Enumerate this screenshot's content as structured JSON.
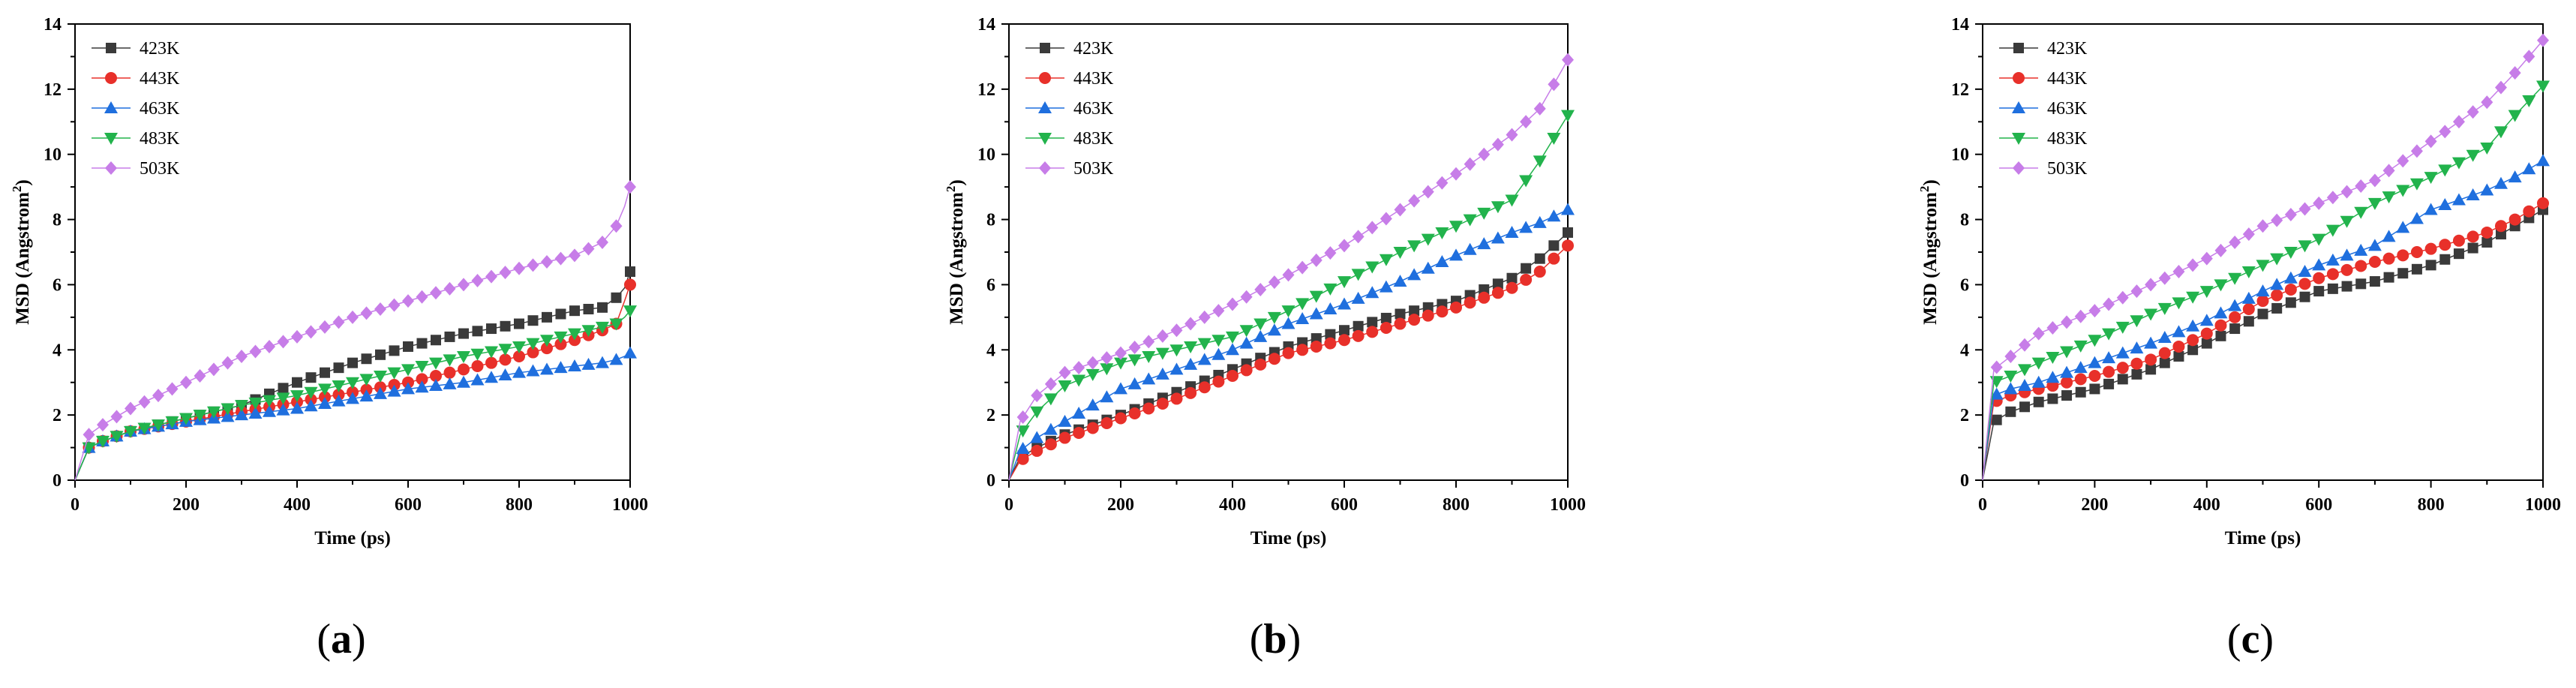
{
  "chart_data": [
    {
      "type": "line",
      "panel_label": "(a)",
      "xlabel": "Time (ps)",
      "ylabel": "MSD (Angstrom",
      "ylabel_sup": "2",
      "ylabel_close": ")",
      "xlim": [
        0,
        1000
      ],
      "ylim": [
        0,
        14
      ],
      "xticks": [
        0,
        200,
        400,
        600,
        800,
        1000
      ],
      "yticks": [
        0,
        2,
        4,
        6,
        8,
        10,
        12,
        14
      ],
      "legend_position": "top-left",
      "series": [
        {
          "name": "423K",
          "color": "#3a3a3a",
          "marker": "square",
          "x": [
            0,
            25,
            50,
            100,
            200,
            300,
            400,
            500,
            600,
            700,
            800,
            900,
            950,
            975,
            990,
            1000
          ],
          "y": [
            0,
            1.0,
            1.2,
            1.5,
            1.9,
            2.3,
            3.0,
            3.6,
            4.1,
            4.5,
            4.8,
            5.2,
            5.3,
            5.6,
            5.9,
            6.4
          ]
        },
        {
          "name": "443K",
          "color": "#e8302a",
          "marker": "circle",
          "x": [
            0,
            25,
            50,
            100,
            200,
            300,
            400,
            500,
            600,
            700,
            800,
            900,
            950,
            975,
            990,
            1000
          ],
          "y": [
            0,
            1.0,
            1.2,
            1.5,
            1.8,
            2.1,
            2.4,
            2.7,
            3.0,
            3.4,
            3.8,
            4.3,
            4.6,
            4.8,
            5.5,
            6.0
          ]
        },
        {
          "name": "463K",
          "color": "#1f6fde",
          "marker": "triangle-up",
          "x": [
            0,
            25,
            50,
            100,
            200,
            300,
            400,
            500,
            600,
            700,
            800,
            900,
            950,
            975,
            990,
            1000
          ],
          "y": [
            0,
            1.0,
            1.2,
            1.5,
            1.8,
            2.0,
            2.2,
            2.5,
            2.8,
            3.0,
            3.3,
            3.5,
            3.6,
            3.7,
            3.8,
            3.9
          ]
        },
        {
          "name": "483K",
          "color": "#22b34c",
          "marker": "triangle-down",
          "x": [
            0,
            25,
            50,
            100,
            200,
            300,
            400,
            500,
            600,
            700,
            800,
            900,
            950,
            975,
            990,
            1000
          ],
          "y": [
            0,
            1.0,
            1.2,
            1.5,
            1.9,
            2.3,
            2.6,
            3.0,
            3.4,
            3.8,
            4.1,
            4.5,
            4.7,
            4.8,
            5.0,
            5.2
          ]
        },
        {
          "name": "503K",
          "color": "#c77de8",
          "marker": "diamond",
          "x": [
            0,
            25,
            50,
            100,
            200,
            300,
            400,
            500,
            600,
            700,
            800,
            900,
            950,
            975,
            990,
            1000
          ],
          "y": [
            0,
            1.4,
            1.7,
            2.2,
            3.0,
            3.8,
            4.4,
            5.0,
            5.5,
            6.0,
            6.5,
            6.9,
            7.3,
            7.8,
            8.4,
            9.0
          ]
        }
      ]
    },
    {
      "type": "line",
      "panel_label": "(b)",
      "xlabel": "Time (ps)",
      "ylabel": "MSD (Angstrom",
      "ylabel_sup": "2",
      "ylabel_close": ")",
      "xlim": [
        0,
        1000
      ],
      "ylim": [
        0,
        14
      ],
      "xticks": [
        0,
        200,
        400,
        600,
        800,
        1000
      ],
      "yticks": [
        0,
        2,
        4,
        6,
        8,
        10,
        12,
        14
      ],
      "legend_position": "top-left",
      "series": [
        {
          "name": "423K",
          "color": "#3a3a3a",
          "marker": "square",
          "x": [
            0,
            20,
            50,
            100,
            200,
            300,
            400,
            500,
            600,
            700,
            800,
            900,
            950,
            1000
          ],
          "y": [
            0,
            0.7,
            1.0,
            1.4,
            2.0,
            2.7,
            3.4,
            4.1,
            4.6,
            5.1,
            5.5,
            6.2,
            6.8,
            7.6
          ]
        },
        {
          "name": "443K",
          "color": "#e8302a",
          "marker": "circle",
          "x": [
            0,
            20,
            50,
            100,
            200,
            300,
            400,
            500,
            600,
            700,
            800,
            900,
            950,
            1000
          ],
          "y": [
            0,
            0.6,
            0.9,
            1.3,
            1.9,
            2.5,
            3.2,
            3.9,
            4.3,
            4.8,
            5.3,
            5.9,
            6.4,
            7.2
          ]
        },
        {
          "name": "463K",
          "color": "#1f6fde",
          "marker": "triangle-up",
          "x": [
            0,
            20,
            50,
            100,
            200,
            300,
            400,
            500,
            600,
            700,
            800,
            900,
            950,
            1000
          ],
          "y": [
            0,
            0.9,
            1.3,
            1.8,
            2.8,
            3.4,
            4.0,
            4.8,
            5.4,
            6.1,
            6.9,
            7.6,
            7.9,
            8.3
          ]
        },
        {
          "name": "483K",
          "color": "#22b34c",
          "marker": "triangle-down",
          "x": [
            0,
            20,
            50,
            100,
            200,
            300,
            400,
            500,
            600,
            700,
            800,
            900,
            950,
            1000
          ],
          "y": [
            0,
            1.4,
            2.1,
            2.9,
            3.6,
            4.0,
            4.4,
            5.2,
            6.1,
            7.0,
            7.8,
            8.6,
            9.8,
            11.2
          ]
        },
        {
          "name": "503K",
          "color": "#c77de8",
          "marker": "diamond",
          "x": [
            0,
            20,
            50,
            100,
            200,
            300,
            400,
            500,
            600,
            700,
            800,
            900,
            950,
            1000
          ],
          "y": [
            0,
            1.8,
            2.6,
            3.3,
            3.9,
            4.6,
            5.4,
            6.3,
            7.2,
            8.3,
            9.4,
            10.6,
            11.4,
            12.9
          ]
        }
      ]
    },
    {
      "type": "line",
      "panel_label": "(c)",
      "xlabel": "Time (ps)",
      "ylabel": "MSD (Angstrom",
      "ylabel_sup": "2",
      "ylabel_close": ")",
      "xlim": [
        0,
        1000
      ],
      "ylim": [
        0,
        14
      ],
      "xticks": [
        0,
        200,
        400,
        600,
        800,
        1000
      ],
      "yticks": [
        0,
        2,
        4,
        6,
        8,
        10,
        12,
        14
      ],
      "legend_position": "top-left",
      "series": [
        {
          "name": "423K",
          "color": "#3a3a3a",
          "marker": "square",
          "x": [
            0,
            20,
            50,
            100,
            200,
            300,
            400,
            500,
            600,
            700,
            800,
            900,
            950,
            1000
          ],
          "y": [
            0,
            1.8,
            2.1,
            2.4,
            2.8,
            3.4,
            4.2,
            5.1,
            5.8,
            6.1,
            6.6,
            7.3,
            7.8,
            8.3
          ]
        },
        {
          "name": "443K",
          "color": "#e8302a",
          "marker": "circle",
          "x": [
            0,
            20,
            50,
            100,
            200,
            300,
            400,
            500,
            600,
            700,
            800,
            900,
            950,
            1000
          ],
          "y": [
            0,
            2.4,
            2.6,
            2.8,
            3.2,
            3.7,
            4.5,
            5.5,
            6.2,
            6.7,
            7.1,
            7.6,
            8.0,
            8.5
          ]
        },
        {
          "name": "463K",
          "color": "#1f6fde",
          "marker": "triangle-up",
          "x": [
            0,
            20,
            50,
            100,
            200,
            300,
            400,
            500,
            600,
            700,
            800,
            900,
            950,
            1000
          ],
          "y": [
            0,
            2.6,
            2.8,
            3.0,
            3.6,
            4.2,
            4.9,
            5.8,
            6.6,
            7.2,
            8.3,
            8.9,
            9.3,
            9.8
          ]
        },
        {
          "name": "483K",
          "color": "#22b34c",
          "marker": "triangle-down",
          "x": [
            0,
            20,
            50,
            100,
            200,
            300,
            400,
            500,
            600,
            700,
            800,
            900,
            950,
            1000
          ],
          "y": [
            0,
            3.0,
            3.2,
            3.6,
            4.3,
            5.1,
            5.8,
            6.6,
            7.4,
            8.5,
            9.3,
            10.2,
            11.2,
            12.1
          ]
        },
        {
          "name": "503K",
          "color": "#c77de8",
          "marker": "diamond",
          "x": [
            0,
            20,
            50,
            100,
            200,
            300,
            400,
            500,
            600,
            700,
            800,
            900,
            950,
            1000
          ],
          "y": [
            0,
            3.4,
            3.8,
            4.5,
            5.2,
            6.0,
            6.8,
            7.8,
            8.5,
            9.2,
            10.4,
            11.6,
            12.5,
            13.5
          ]
        }
      ]
    }
  ]
}
